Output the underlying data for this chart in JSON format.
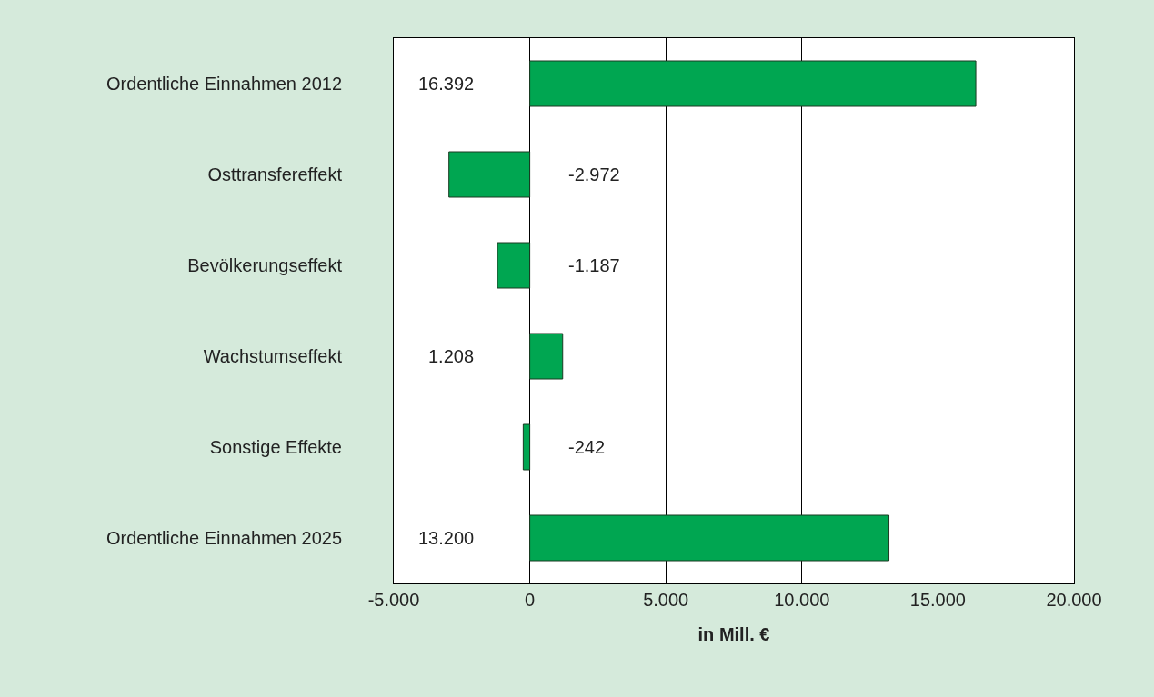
{
  "chart_data": {
    "type": "bar",
    "orientation": "horizontal",
    "xlabel": "in Mill. €",
    "categories": [
      "Ordentliche Einnahmen 2012",
      "Osttransfereffekt",
      "Bevölkerungseffekt",
      "Wachstumseffekt",
      "Sonstige Effekte",
      "Ordentliche Einnahmen 2025"
    ],
    "values": [
      16392,
      -2972,
      -1187,
      1208,
      -242,
      13200
    ],
    "value_labels": [
      "16.392",
      "-2.972",
      "-1.187",
      "1.208",
      "-242",
      "13.200"
    ],
    "color": "#00a651",
    "xlim": [
      -5000,
      20000
    ],
    "xticks": [
      {
        "value": -5000,
        "label": "-5.000"
      },
      0,
      {
        "value": 5000,
        "label": "5.000"
      },
      {
        "value": 10000,
        "label": "10.000"
      },
      {
        "value": 15000,
        "label": "15.000"
      },
      {
        "value": 20000,
        "label": "20.000"
      }
    ],
    "grid": "x",
    "legend": false
  }
}
